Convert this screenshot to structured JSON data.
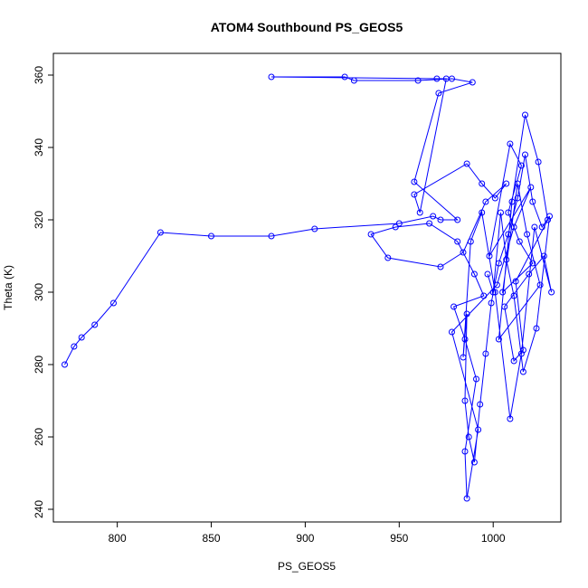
{
  "chart_data": {
    "type": "scatter",
    "title": "ATOM4 Southbound PS_GEOS5",
    "xlabel": "PS_GEOS5",
    "ylabel": "Theta (K)",
    "xlim": [
      766,
      1036
    ],
    "ylim": [
      236.5,
      366
    ],
    "xticks": [
      800,
      850,
      900,
      950,
      1000
    ],
    "yticks": [
      240,
      260,
      280,
      300,
      320,
      340,
      360
    ],
    "grid": false,
    "legend": "none",
    "marker": "open-circle",
    "connected": true,
    "color": "#0000ff",
    "series": [
      {
        "x": [
          772,
          777,
          781,
          788,
          798,
          823,
          850,
          882,
          905,
          950,
          968,
          972,
          981,
          958,
          971,
          989,
          978,
          960,
          926,
          921,
          882,
          970,
          975,
          961,
          958,
          986,
          994,
          1001,
          1007,
          996,
          984,
          972,
          944,
          935,
          948,
          966,
          981,
          990,
          995,
          979,
          985,
          991,
          985,
          986,
          992,
          978,
          1002,
          1011,
          1020,
          998,
          1009,
          1015,
          1008,
          1014,
          1021,
          1005,
          1013,
          1018,
          1025,
          1003,
          1010,
          1017,
          1024,
          1029,
          1012,
          1016,
          1011,
          1006,
          1019,
          1027,
          1031,
          1022,
          1015,
          1009,
          1001,
          994,
          988,
          984,
          986,
          985,
          987,
          990,
          993,
          996,
          999,
          1003,
          1008,
          1013,
          1017,
          1021,
          1026,
          1030,
          1023,
          1016,
          1011,
          1007,
          1004,
          1000,
          997
        ],
        "y": [
          280,
          285,
          287.5,
          291,
          297,
          316.5,
          315.5,
          315.5,
          317.5,
          319,
          321,
          320,
          320,
          330.5,
          355,
          358,
          359,
          358.5,
          358.5,
          359.5,
          359.5,
          359,
          359,
          322,
          327,
          335.5,
          330,
          326,
          330,
          325,
          311,
          307,
          309.5,
          316,
          318,
          319,
          314,
          305,
          299,
          296,
          287,
          276,
          256,
          243,
          262,
          289,
          302,
          318,
          329,
          310,
          341,
          335,
          322,
          314,
          308,
          300,
          330,
          316,
          302,
          287,
          325,
          349,
          336,
          320,
          303,
          284,
          281,
          296,
          305,
          310,
          300,
          318,
          283,
          265,
          300,
          322,
          314,
          282,
          294,
          270,
          260,
          253,
          269,
          283,
          297,
          308,
          316,
          326,
          338,
          325,
          318,
          321,
          290,
          278,
          299,
          309,
          322,
          300,
          305
        ]
      }
    ]
  }
}
